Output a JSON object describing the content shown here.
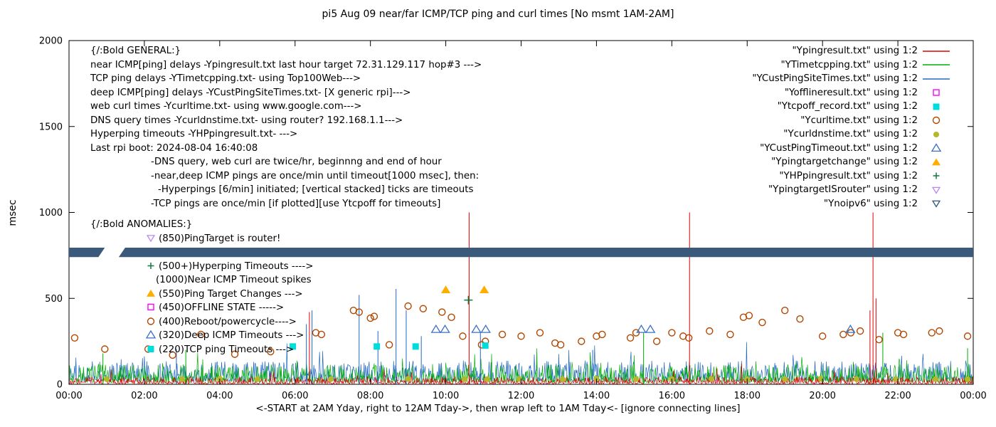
{
  "title": "pi5 Aug 09  near/far ICMP/TCP ping and curl times [No msmt 1AM-2AM]",
  "xlabel": "<-START at 2AM Yday, right to 12AM Tday->, then wrap left to 1AM Tday<- [ignore connecting lines]",
  "ylabel": "msec",
  "axes": {
    "y_tick_labels": [
      "0",
      "500",
      "1000",
      "1500",
      "2000"
    ],
    "x_tick_labels": [
      "00:00",
      "02:00",
      "04:00",
      "06:00",
      "08:00",
      "10:00",
      "12:00",
      "14:00",
      "16:00",
      "18:00",
      "20:00",
      "22:00",
      "00:00"
    ],
    "y_range": [
      0,
      2000
    ],
    "x_range_hours": [
      0,
      24
    ]
  },
  "legend": [
    {
      "label": "\"Ypingresult.txt\" using 1:2",
      "key": "line",
      "color": "#dd0000"
    },
    {
      "label": "\"YTimetcpping.txt\" using 1:2",
      "key": "line",
      "color": "#00b000"
    },
    {
      "label": "\"YCustPingSiteTimes.txt\" using 1:2",
      "key": "line",
      "color": "#2268c2"
    },
    {
      "label": "\"Yofflineresult.txt\" using 1:2",
      "key": "square-open",
      "color": "#ff00ff"
    },
    {
      "label": "\"Ytcpoff_record.txt\" using 1:2",
      "key": "square-filled",
      "color": "#00dcdc"
    },
    {
      "label": "\"Ycurltime.txt\" using 1:2",
      "key": "circle-open",
      "color": "#b34700"
    },
    {
      "label": "\"Ycurldnstime.txt\" using 1:2",
      "key": "circle-filled",
      "color": "#b5b82a"
    },
    {
      "label": "\"YCustPingTimeout.txt\" using 1:2",
      "key": "triangle-open",
      "color": "#3a6fc4"
    },
    {
      "label": "\"Ypingtargetchange\" using 1:2",
      "key": "triangle-filled",
      "color": "#ffae00"
    },
    {
      "label": "\"YHPpingresult.txt\" using 1:2",
      "key": "plus",
      "color": "#0e7a3a"
    },
    {
      "label": "\"YpingtargetISrouter\" using 1:2",
      "key": "nabla-open",
      "color": "#bd86f0"
    },
    {
      "label": "\"Ynoipv6\" using 1:2",
      "key": "nabla-open",
      "color": "#31567e"
    }
  ],
  "annotation_lines": [
    {
      "text": "{/:Bold GENERAL:}",
      "indent": 0
    },
    {
      "text": "near ICMP[ping] delays -Ypingresult.txt last hour target 72.31.129.117 hop#3 --->",
      "indent": 0
    },
    {
      "text": "TCP ping delays -YTimetcpping.txt- using Top100Web--->",
      "indent": 0
    },
    {
      "text": "deep ICMP[ping] delays -YCustPingSiteTimes.txt- [X generic rpi]--->",
      "indent": 0
    },
    {
      "text": "web curl times -Ycurltime.txt- using www.google.com--->",
      "indent": 0
    },
    {
      "text": "DNS query times -Ycurldnstime.txt- using router? 192.168.1.1--->",
      "indent": 0
    },
    {
      "text": "Hyperping timeouts -YHPpingresult.txt- --->",
      "indent": 0
    },
    {
      "text": "Last rpi boot: 2024-08-04 16:40:08",
      "indent": 0
    },
    {
      "text": "-DNS query, web curl are twice/hr, beginnng and end of hour",
      "indent": 85
    },
    {
      "text": "-near,deep ICMP pings are once/min until timeout[1000 msec], then:",
      "indent": 85
    },
    {
      "text": "-Hyperpings [6/min] initiated; [vertical stacked] ticks are timeouts",
      "indent": 95
    },
    {
      "text": "-TCP pings are once/min [if plotted][use Ytcpoff for timeouts]",
      "indent": 85
    },
    {
      "text": "{/:Bold ANOMALIES:}",
      "indent": 0,
      "gap": true
    },
    {
      "text": "(850)PingTarget is router!",
      "indent": 78,
      "marker": "nabla-open",
      "color": "#bd86f0"
    },
    {
      "text": "",
      "indent": 0
    },
    {
      "text": "(500+)Hyperping Timeouts ---->",
      "indent": 78,
      "marker": "plus",
      "color": "#0e7a3a"
    },
    {
      "text": "(1000)Near ICMP Timeout spikes",
      "indent": 92
    },
    {
      "text": "(550)Ping Target Changes --->",
      "indent": 78,
      "marker": "triangle-filled",
      "color": "#ffae00"
    },
    {
      "text": "(450)OFFLINE STATE ----->",
      "indent": 78,
      "marker": "square-open",
      "color": "#ff00ff"
    },
    {
      "text": "(400)Reboot/powercycle---->",
      "indent": 78,
      "marker": "circle-open",
      "color": "#b34700"
    },
    {
      "text": "(320)Deep ICMP Timeouts --->",
      "indent": 78,
      "marker": "triangle-open",
      "color": "#3a6fc4"
    },
    {
      "text": "(220)TCP ping Timeouts --->",
      "indent": 78,
      "marker": "square-filled",
      "color": "#00dcdc"
    }
  ],
  "chart_data": {
    "type": "line+scatter",
    "x_unit": "hours since 2AM yesterday (wrapped)",
    "x_range": [
      0,
      24
    ],
    "y_range": [
      0,
      2000
    ],
    "colors": {
      "red": "#dd0000",
      "green": "#00b000",
      "blue": "#2268c2",
      "curl": "#b34700",
      "dns": "#b5b82a",
      "timeout_triangle": "#3a6fc4",
      "target_triangle": "#ffae00",
      "tcp_square": "#00dcdc",
      "hyperping_plus": "#0e7a3a",
      "band": "#3b5a7b"
    },
    "noise": {
      "seed": 7,
      "red": {
        "base": 3,
        "amp": 42,
        "spike_p": 0.02,
        "spike_amp": 90
      },
      "green": {
        "base": 10,
        "amp": 105,
        "spike_p": 0.05,
        "spike_amp": 120
      },
      "blue": {
        "base": 18,
        "amp": 120,
        "spike_p": 0.04,
        "spike_amp": 160
      }
    },
    "spikes": {
      "red": [
        [
          6.38,
          420
        ],
        [
          10.62,
          1000
        ],
        [
          16.47,
          1000
        ],
        [
          21.26,
          430
        ],
        [
          21.34,
          1000
        ],
        [
          21.42,
          500
        ]
      ],
      "blue": [
        [
          2.85,
          205
        ],
        [
          6.3,
          350
        ],
        [
          6.45,
          430
        ],
        [
          7.7,
          520
        ],
        [
          8.2,
          310
        ],
        [
          8.68,
          555
        ],
        [
          8.95,
          430
        ],
        [
          9.35,
          280
        ],
        [
          10.92,
          300
        ],
        [
          13.9,
          200
        ]
      ],
      "green": [
        [
          0.9,
          180
        ],
        [
          3.1,
          200
        ],
        [
          15.25,
          300
        ],
        [
          21.6,
          300
        ],
        [
          23.85,
          210
        ]
      ]
    },
    "curl_times": [
      [
        0.15,
        270
      ],
      [
        0.95,
        205
      ],
      [
        2.1,
        205
      ],
      [
        2.75,
        170
      ],
      [
        3.5,
        290
      ],
      [
        4.4,
        175
      ],
      [
        5.35,
        190
      ],
      [
        6.55,
        300
      ],
      [
        6.7,
        290
      ],
      [
        7.55,
        430
      ],
      [
        7.7,
        420
      ],
      [
        8.0,
        385
      ],
      [
        8.1,
        395
      ],
      [
        8.5,
        230
      ],
      [
        9.0,
        455
      ],
      [
        9.4,
        440
      ],
      [
        9.9,
        420
      ],
      [
        10.15,
        390
      ],
      [
        10.45,
        280
      ],
      [
        10.95,
        230
      ],
      [
        11.05,
        250
      ],
      [
        11.5,
        290
      ],
      [
        12.0,
        280
      ],
      [
        12.5,
        300
      ],
      [
        12.9,
        240
      ],
      [
        13.05,
        230
      ],
      [
        13.6,
        250
      ],
      [
        14.0,
        280
      ],
      [
        14.15,
        290
      ],
      [
        14.9,
        270
      ],
      [
        15.05,
        300
      ],
      [
        15.6,
        250
      ],
      [
        16.0,
        300
      ],
      [
        16.3,
        280
      ],
      [
        16.45,
        270
      ],
      [
        17.0,
        310
      ],
      [
        17.55,
        290
      ],
      [
        17.9,
        390
      ],
      [
        18.05,
        400
      ],
      [
        18.4,
        360
      ],
      [
        19.0,
        430
      ],
      [
        19.4,
        380
      ],
      [
        20.0,
        280
      ],
      [
        20.55,
        290
      ],
      [
        20.75,
        300
      ],
      [
        21.0,
        310
      ],
      [
        21.5,
        260
      ],
      [
        22.0,
        300
      ],
      [
        22.15,
        290
      ],
      [
        22.9,
        300
      ],
      [
        23.1,
        310
      ],
      [
        23.85,
        280
      ]
    ],
    "dns_times": [
      [
        1.0,
        30
      ],
      [
        3.0,
        30
      ],
      [
        4.0,
        32
      ],
      [
        5.0,
        30
      ],
      [
        6.95,
        30
      ],
      [
        9.0,
        32
      ],
      [
        10.5,
        30
      ],
      [
        11.1,
        30
      ],
      [
        11.95,
        30
      ],
      [
        13.1,
        30
      ],
      [
        14.0,
        32
      ],
      [
        15.05,
        30
      ],
      [
        16.0,
        30
      ],
      [
        17.05,
        32
      ],
      [
        18.0,
        30
      ],
      [
        19.0,
        30
      ],
      [
        19.95,
        32
      ],
      [
        20.9,
        30
      ],
      [
        21.95,
        30
      ],
      [
        23.0,
        30
      ],
      [
        23.85,
        30
      ]
    ],
    "deep_icmp_timeouts": [
      [
        9.74,
        320
      ],
      [
        9.98,
        320
      ],
      [
        10.81,
        320
      ],
      [
        11.06,
        320
      ],
      [
        15.19,
        320
      ],
      [
        15.43,
        320
      ],
      [
        20.74,
        320
      ]
    ],
    "ping_target_changes": [
      [
        10.0,
        550
      ],
      [
        11.02,
        550
      ]
    ],
    "tcp_ping_timeouts": [
      [
        5.94,
        220
      ],
      [
        8.17,
        220
      ],
      [
        9.2,
        220
      ],
      [
        11.05,
        225
      ]
    ],
    "hyperping_timeouts": [
      [
        10.6,
        490
      ]
    ],
    "noipv6_band": {
      "y_low": 740,
      "y_high": 795,
      "gap_x": [
        0.78,
        1.32
      ],
      "color": "#3b5a7b"
    }
  }
}
